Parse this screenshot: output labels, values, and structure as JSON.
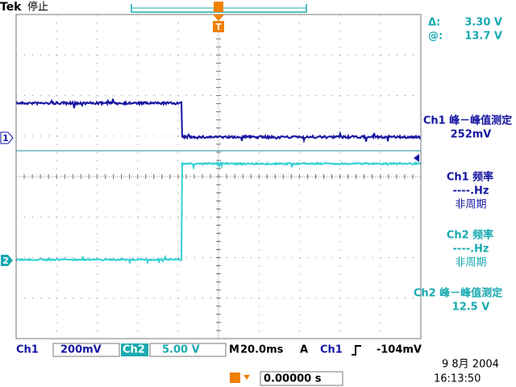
{
  "header": {
    "brand": "Tek",
    "status": "停止"
  },
  "trigger_marker": "T",
  "cursor": {
    "delta_label": "Δ:",
    "delta_value": "3.30 V",
    "at_label": "@:",
    "at_value": "13.7 V"
  },
  "channel_markers": [
    "1",
    "2"
  ],
  "measurements": [
    {
      "title": "Ch1 峰－峰值测定",
      "value": "252mV"
    },
    {
      "title": "Ch1 频率",
      "value": "----.Hz",
      "status": "非周期"
    },
    {
      "title": "Ch2 频率",
      "value": "----.Hz",
      "status": "非周期"
    },
    {
      "title": "Ch2 峰－峰值测定",
      "value": "12.5 V"
    }
  ],
  "status_bar": {
    "ch1_label": "Ch1",
    "ch1_scale": "200mV",
    "ch2_label": "Ch2",
    "ch2_scale": "5.00 V",
    "timebase_prefix": "M",
    "timebase": "20.0ms",
    "trigger_mode": "A",
    "trigger_source": "Ch1",
    "trigger_level": "-104mV"
  },
  "trigger_position": "0.00000 s",
  "date": "9 8月  2004",
  "time": "16:13:50"
}
